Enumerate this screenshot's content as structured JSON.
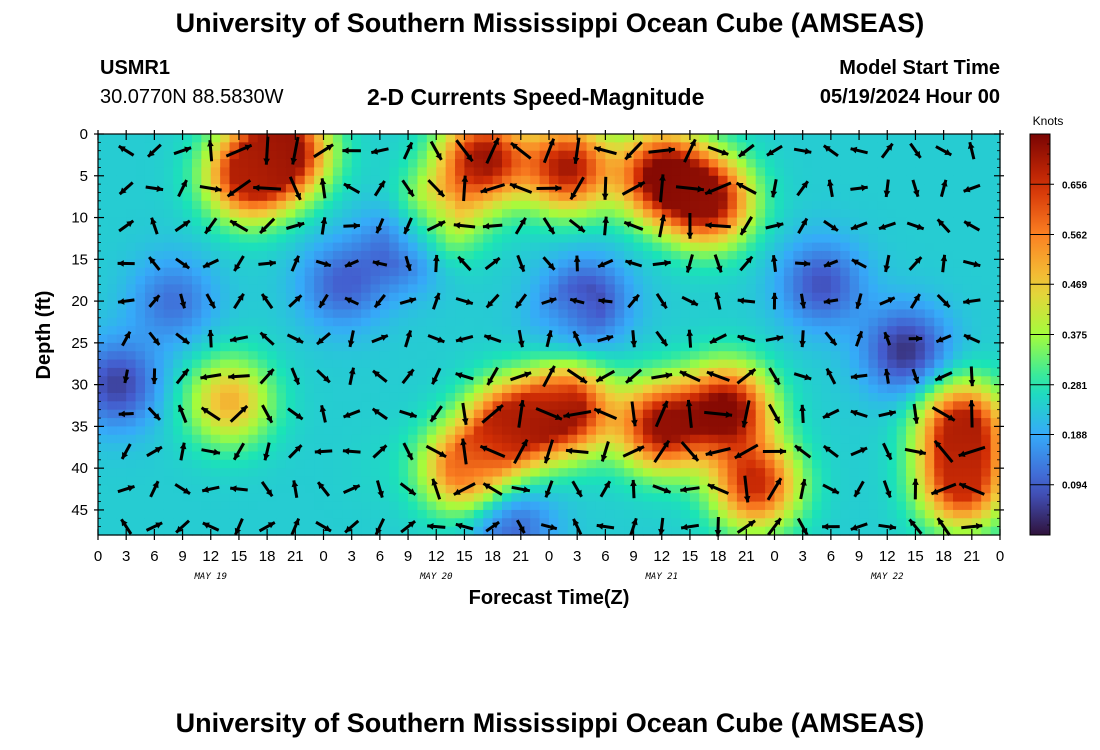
{
  "header": {
    "title_top": "University of Southern Mississippi Ocean Cube (AMSEAS)",
    "title_bottom": "University of Southern Mississippi Ocean Cube (AMSEAS)",
    "station_id": "USMR1",
    "station_location": "30.0770N  88.5830W",
    "plot_title": "2-D Currents Speed-Magnitude",
    "model_start_label": "Model Start Time",
    "model_start_value": "05/19/2024 Hour 00"
  },
  "chart_data": {
    "type": "heatmap",
    "title": "2-D Currents Speed-Magnitude",
    "xlabel": "Forecast Time(Z)",
    "ylabel": "Depth (ft)",
    "colorbar_label": "Knots",
    "colorbar_ticks": [
      0.094,
      0.188,
      0.281,
      0.375,
      0.469,
      0.562,
      0.656
    ],
    "colorbar_range": [
      0.0,
      0.75
    ],
    "x_tick_labels": [
      "0",
      "3",
      "6",
      "9",
      "12",
      "15",
      "18",
      "21",
      "0",
      "3",
      "6",
      "9",
      "12",
      "15",
      "18",
      "21",
      "0",
      "3",
      "6",
      "9",
      "12",
      "15",
      "18",
      "21",
      "0",
      "3",
      "6",
      "9",
      "12",
      "15",
      "18",
      "21",
      "0"
    ],
    "x_range_hours": [
      0,
      96
    ],
    "day_labels": [
      {
        "text": "MAY 19",
        "hour": 12
      },
      {
        "text": "MAY 20",
        "hour": 36
      },
      {
        "text": "MAY 21",
        "hour": 60
      },
      {
        "text": "MAY 22",
        "hour": 84
      }
    ],
    "y_ticks": [
      0,
      5,
      10,
      15,
      20,
      25,
      30,
      35,
      40,
      45
    ],
    "y_range": [
      0,
      48
    ],
    "y_inverted": true,
    "speed_features": [
      {
        "hour": 20,
        "depth": 2,
        "speed": 0.72
      },
      {
        "hour": 16,
        "depth": 5,
        "speed": 0.68
      },
      {
        "hour": 41,
        "depth": 3,
        "speed": 0.72
      },
      {
        "hour": 50,
        "depth": 4,
        "speed": 0.7
      },
      {
        "hour": 60,
        "depth": 5,
        "speed": 0.74
      },
      {
        "hour": 65,
        "depth": 8,
        "speed": 0.72
      },
      {
        "hour": 36,
        "depth": 10,
        "speed": 0.5
      },
      {
        "hour": 14,
        "depth": 32,
        "speed": 0.5
      },
      {
        "hour": 2,
        "depth": 30,
        "speed": 0.06
      },
      {
        "hour": 8,
        "depth": 20,
        "speed": 0.12
      },
      {
        "hour": 26,
        "depth": 18,
        "speed": 0.1
      },
      {
        "hour": 33,
        "depth": 13,
        "speed": 0.05
      },
      {
        "hour": 52,
        "depth": 20,
        "speed": 0.06
      },
      {
        "hour": 77,
        "depth": 18,
        "speed": 0.08
      },
      {
        "hour": 86,
        "depth": 26,
        "speed": 0.04
      },
      {
        "hour": 44,
        "depth": 35,
        "speed": 0.7
      },
      {
        "hour": 50,
        "depth": 33,
        "speed": 0.72
      },
      {
        "hour": 39,
        "depth": 40,
        "speed": 0.6
      },
      {
        "hour": 60,
        "depth": 35,
        "speed": 0.72
      },
      {
        "hour": 67,
        "depth": 33,
        "speed": 0.74
      },
      {
        "hour": 70,
        "depth": 42,
        "speed": 0.66
      },
      {
        "hour": 92,
        "depth": 35,
        "speed": 0.7
      },
      {
        "hour": 92,
        "depth": 42,
        "speed": 0.66
      },
      {
        "hour": 44,
        "depth": 47,
        "speed": 0.1
      },
      {
        "hour": 48,
        "depth": 24,
        "speed": 0.22
      },
      {
        "hour": 30,
        "depth": 40,
        "speed": 0.25
      }
    ]
  }
}
